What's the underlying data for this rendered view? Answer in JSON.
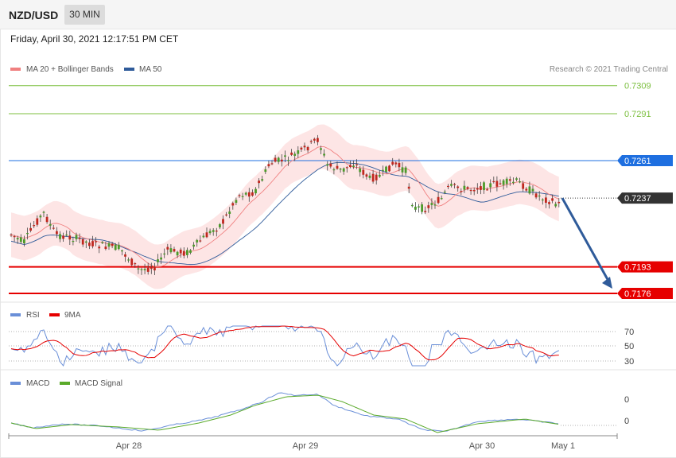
{
  "header": {
    "symbol": "NZD/USD",
    "timeframe": "30 MIN",
    "datetime": "Friday, April 30, 2021 12:17:51 PM CET"
  },
  "chart_data": [
    {
      "type": "candlestick",
      "legend": [
        {
          "name": "MA 20 + Bollinger Bands",
          "color": "#f08080"
        },
        {
          "name": "MA 50",
          "color": "#2f5b9a"
        }
      ],
      "copyright": "Research © 2021 Trading Central",
      "ylim": [
        0.717,
        0.7315
      ],
      "levels": [
        {
          "value": 0.7309,
          "label": "0.7309",
          "kind": "target",
          "color": "#7cbf3f"
        },
        {
          "value": 0.7291,
          "label": "0.7291",
          "kind": "target",
          "color": "#7cbf3f"
        },
        {
          "value": 0.7261,
          "label": "0.7261",
          "kind": "pivot",
          "color": "#1e6fe0"
        },
        {
          "value": 0.7237,
          "label": "0.7237",
          "kind": "last",
          "color": "#333333"
        },
        {
          "value": 0.7193,
          "label": "0.7193",
          "kind": "support",
          "color": "#e60000"
        },
        {
          "value": 0.7176,
          "label": "0.7176",
          "kind": "support",
          "color": "#e60000"
        }
      ],
      "forecast_arrow": {
        "from": 0.7237,
        "to": 0.7176,
        "color": "#2f5b9a"
      },
      "x_ticks": [
        "Apr 28",
        "Apr 29",
        "Apr 30",
        "May 1"
      ],
      "up_color": "#4c9a2a",
      "down_color": "#c0271e"
    },
    {
      "type": "line",
      "legend": [
        {
          "name": "RSI",
          "color": "#6a8fd8"
        },
        {
          "name": "9MA",
          "color": "#e60000"
        }
      ],
      "ylim": [
        20,
        80
      ],
      "y_ticks": [
        "70",
        "50",
        "30"
      ]
    },
    {
      "type": "line",
      "legend": [
        {
          "name": "MACD",
          "color": "#6a8fd8"
        },
        {
          "name": "MACD Signal",
          "color": "#5aaa2a"
        }
      ],
      "y_ticks": [
        "0",
        "0"
      ]
    }
  ]
}
